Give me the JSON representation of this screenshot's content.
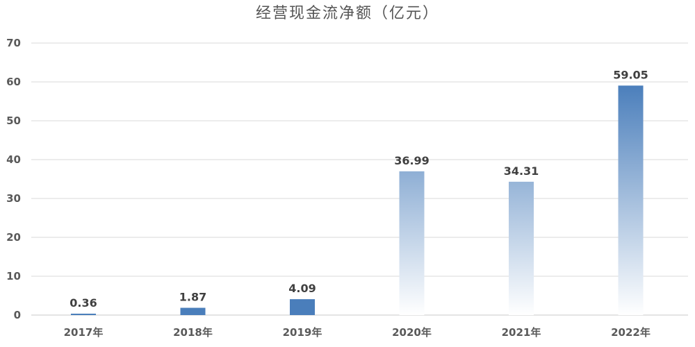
{
  "chart_data": {
    "type": "bar",
    "title": "经营现金流净额（亿元）",
    "categories": [
      "2017年",
      "2018年",
      "2019年",
      "2020年",
      "2021年",
      "2022年"
    ],
    "values": [
      0.36,
      1.87,
      4.09,
      36.99,
      34.31,
      59.05
    ],
    "data_labels": [
      "0.36",
      "1.87",
      "4.09",
      "36.99",
      "34.31",
      "59.05"
    ],
    "y_ticks": [
      "0",
      "10",
      "20",
      "30",
      "40",
      "50",
      "60",
      "70"
    ],
    "ylim": [
      0,
      70
    ],
    "grid": true,
    "legend": "none",
    "bar_color": "#4a7ebb",
    "bar_fade_color": "#ffffff"
  }
}
